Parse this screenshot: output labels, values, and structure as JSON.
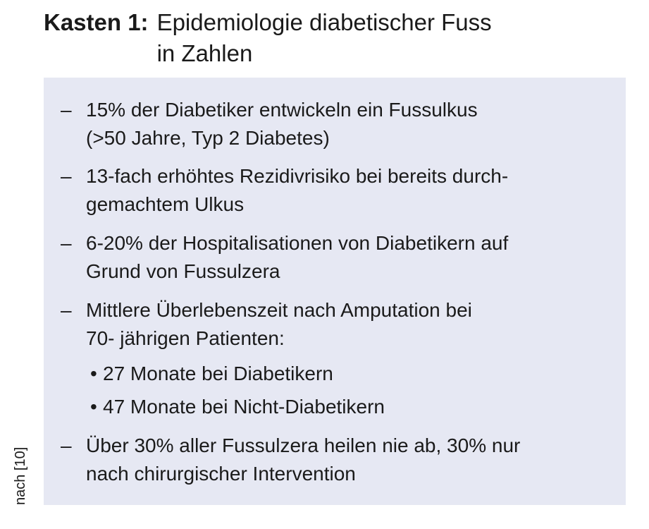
{
  "title": {
    "label": "Kasten 1:",
    "line1": "Epidemiologie diabetischer Fuss",
    "line2": "in Zahlen"
  },
  "source": "nach [10]",
  "list": {
    "dash": "–",
    "bullet": "•",
    "items": [
      {
        "line1": "15% der Diabetiker entwickeln ein Fussulkus",
        "line2": "(>50 Jahre, Typ 2 Diabetes)"
      },
      {
        "line1": "13-fach erhöhtes Rezidivrisiko bei bereits durch-",
        "line2": "gemachtem Ulkus"
      },
      {
        "line1": "6-20% der Hospitalisationen von Diabetikern auf",
        "line2": "Grund von Fussulzera"
      },
      {
        "line1": "Mittlere Überlebenszeit nach Amputation bei",
        "line2": "70- jährigen Patienten:"
      },
      {
        "line1": "Über 30% aller Fussulzera heilen nie ab, 30% nur",
        "line2": "nach chirurgischer Intervention"
      }
    ],
    "subitems": [
      "27 Monate bei Diabetikern",
      "47 Monate bei Nicht-Diabetikern"
    ]
  }
}
